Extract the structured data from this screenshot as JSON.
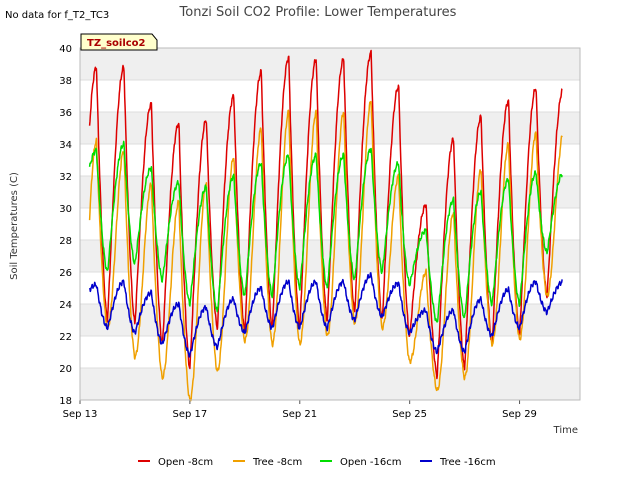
{
  "note": "No data for f_T2_TC3",
  "badge": "TZ_soilco2",
  "chart_data": {
    "type": "line",
    "title": "Tonzi Soil CO2 Profile: Lower Temperatures",
    "xlabel": "Time",
    "ylabel": "Soil Temperatures (C)",
    "ylim": [
      18,
      40
    ],
    "yticks": [
      18,
      20,
      22,
      24,
      26,
      28,
      30,
      32,
      34,
      36,
      38,
      40
    ],
    "xlim": [
      0,
      18.2
    ],
    "xticks": [
      {
        "value": 0,
        "label": "Sep 13"
      },
      {
        "value": 4,
        "label": "Sep 17"
      },
      {
        "value": 8,
        "label": "Sep 21"
      },
      {
        "value": 12,
        "label": "Sep 25"
      },
      {
        "value": 16,
        "label": "Sep 29"
      }
    ],
    "grid": true,
    "legend_position": "bottom",
    "x_start": 0.35,
    "x_end": 17.55,
    "series": [
      {
        "name": "Open -8cm",
        "color": "#dd0000",
        "daily_min": [
          22.5,
          23.0,
          22.8,
          21.5,
          20.0,
          22.5,
          22.3,
          22.5,
          22.5,
          23.0,
          23.5,
          23.0,
          22.0,
          19.5,
          20.0,
          21.5,
          22.0,
          24.5
        ],
        "daily_max": [
          38.8,
          38.8,
          36.5,
          35.3,
          35.5,
          37.0,
          38.5,
          39.4,
          39.3,
          39.3,
          39.7,
          37.6,
          30.2,
          34.3,
          35.7,
          36.7,
          37.5
        ]
      },
      {
        "name": "Tree -8cm",
        "color": "#f0a000",
        "daily_min": [
          21.3,
          22.5,
          20.7,
          19.4,
          18.0,
          19.8,
          21.7,
          21.5,
          21.5,
          22.0,
          22.8,
          22.5,
          20.4,
          18.6,
          19.4,
          21.5,
          21.8,
          24.5
        ],
        "daily_max": [
          34.2,
          33.6,
          31.5,
          30.4,
          31.5,
          33.2,
          35.0,
          36.0,
          36.0,
          36.0,
          36.7,
          32.0,
          26.0,
          29.7,
          32.4,
          34.0,
          34.7
        ]
      },
      {
        "name": "Open -16cm",
        "color": "#00dd00",
        "daily_min": [
          28.8,
          26.0,
          26.5,
          25.5,
          24.0,
          23.5,
          24.5,
          24.5,
          25.0,
          25.0,
          25.5,
          26.0,
          25.2,
          22.8,
          23.1,
          24.0,
          24.0,
          27.2
        ],
        "daily_max": [
          33.6,
          34.0,
          32.5,
          31.6,
          31.3,
          32.0,
          32.8,
          33.3,
          33.3,
          33.3,
          33.7,
          32.8,
          28.6,
          30.5,
          31.0,
          31.8,
          32.2
        ]
      },
      {
        "name": "Tree -16cm",
        "color": "#0000cc",
        "daily_min": [
          23.8,
          22.5,
          22.2,
          21.5,
          20.8,
          21.3,
          22.2,
          22.5,
          22.5,
          22.5,
          23.0,
          23.2,
          22.2,
          21.0,
          21.0,
          22.0,
          22.5,
          23.5
        ],
        "daily_max": [
          25.2,
          25.4,
          24.7,
          24.0,
          23.8,
          24.3,
          25.0,
          25.4,
          25.4,
          25.4,
          25.8,
          25.3,
          23.6,
          23.6,
          24.3,
          24.9,
          25.4
        ]
      }
    ]
  }
}
